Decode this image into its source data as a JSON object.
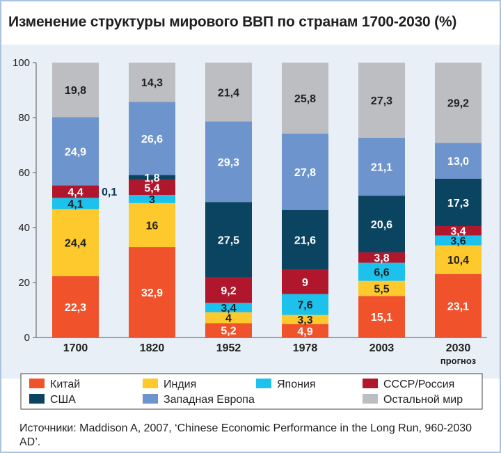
{
  "title": "Изменение структуры мирового ВВП по странам 1700-2030 (%)",
  "source": "Источники: Maddison A, 2007, ‘Chinese Economic Performance in the Long Run, 960-2030 AD’.",
  "chart_data": {
    "type": "bar",
    "stacked": true,
    "categories": [
      "1700",
      "1820",
      "1952",
      "1978",
      "2003",
      "2030"
    ],
    "category_sublabels": [
      "",
      "",
      "",
      "",
      "",
      "прогноз"
    ],
    "ylim": [
      0,
      100
    ],
    "yticks": [
      0,
      20,
      40,
      60,
      80,
      100
    ],
    "grid": false,
    "legend": "bottom",
    "series": [
      {
        "name": "Китай",
        "color": "#f0532c",
        "values": [
          22.3,
          32.9,
          5.2,
          4.9,
          15.1,
          23.1
        ],
        "labels": [
          "22,3",
          "32,9",
          "5,2",
          "4,9",
          "15,1",
          "23,1"
        ]
      },
      {
        "name": "Индия",
        "color": "#fdc92c",
        "values": [
          24.4,
          16,
          4,
          3.3,
          5.5,
          10.4
        ],
        "labels": [
          "24,4",
          "16",
          "4",
          "3,3",
          "5,5",
          "10,4"
        ]
      },
      {
        "name": "Япония",
        "color": "#1cc1ec",
        "values": [
          4.1,
          3,
          3.4,
          7.6,
          6.6,
          3.6
        ],
        "labels": [
          "4,1",
          "3",
          "3,4",
          "7,6",
          "6,6",
          "3,6"
        ]
      },
      {
        "name": "СССР/Россия",
        "color": "#b1172c",
        "values": [
          4.4,
          5.4,
          9.2,
          9,
          3.8,
          3.4
        ],
        "labels": [
          "4,4",
          "5,4",
          "9,2",
          "9",
          "3,8",
          "3,4"
        ]
      },
      {
        "name": "США",
        "color": "#0b4461",
        "values": [
          0.1,
          1.8,
          27.5,
          21.6,
          20.6,
          17.3
        ],
        "labels": [
          "0,1",
          "1,8",
          "27,5",
          "21,6",
          "20,6",
          "17,3"
        ]
      },
      {
        "name": "Западная Европа",
        "color": "#6d94cc",
        "values": [
          24.9,
          26.6,
          29.3,
          27.8,
          21.1,
          13.0
        ],
        "labels": [
          "24,9",
          "26,6",
          "29,3",
          "27,8",
          "21,1",
          "13,0"
        ]
      },
      {
        "name": "Остальной мир",
        "color": "#bcbec2",
        "values": [
          19.8,
          14.3,
          21.4,
          25.8,
          27.3,
          29.2
        ],
        "labels": [
          "19,8",
          "14,3",
          "21,4",
          "25,8",
          "27,3",
          "29,2"
        ]
      }
    ]
  }
}
